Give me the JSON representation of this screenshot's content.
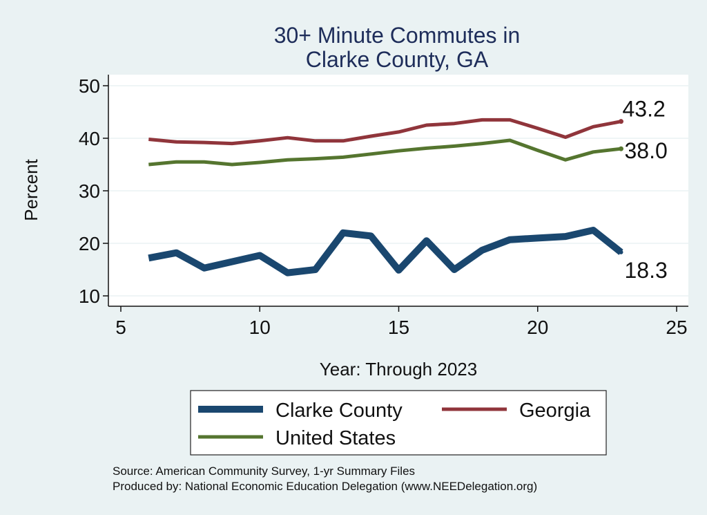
{
  "chart_data": {
    "type": "line",
    "title_lines": [
      "30+ Minute Commutes in",
      "Clarke County, GA"
    ],
    "xlabel": "Year: Through 2023",
    "ylabel": "Percent",
    "xlim": [
      5,
      25
    ],
    "ylim": [
      8,
      52
    ],
    "x_ticks": [
      5,
      10,
      15,
      20,
      25
    ],
    "y_ticks": [
      10,
      20,
      30,
      40,
      50
    ],
    "grid": "horizontal",
    "legend_position": "bottom",
    "series": [
      {
        "name": "Clarke County",
        "color": "#1a476f",
        "end_label": "18.3",
        "x": [
          6,
          7,
          8,
          9,
          10,
          11,
          12,
          13,
          14,
          15,
          16,
          17,
          18,
          19,
          20,
          21,
          22,
          23
        ],
        "values": [
          17.2,
          18.2,
          15.3,
          16.5,
          17.7,
          14.4,
          15.0,
          22.0,
          21.4,
          14.9,
          20.5,
          15.0,
          18.7,
          20.7,
          21.0,
          21.3,
          22.5,
          18.3
        ]
      },
      {
        "name": "Georgia",
        "color": "#90353b",
        "end_label": "43.2",
        "x": [
          6,
          7,
          8,
          9,
          10,
          11,
          12,
          13,
          14,
          15,
          16,
          17,
          18,
          19,
          20,
          21,
          22,
          23
        ],
        "values": [
          39.8,
          39.3,
          39.2,
          39.0,
          39.5,
          40.1,
          39.5,
          39.5,
          40.4,
          41.2,
          42.5,
          42.8,
          43.5,
          43.5,
          41.9,
          40.2,
          42.2,
          43.2
        ]
      },
      {
        "name": "United States",
        "color": "#55752f",
        "end_label": "38.0",
        "x": [
          6,
          7,
          8,
          9,
          10,
          11,
          12,
          13,
          14,
          15,
          16,
          17,
          18,
          19,
          20,
          21,
          22,
          23
        ],
        "values": [
          35.0,
          35.5,
          35.5,
          35.0,
          35.4,
          35.9,
          36.1,
          36.4,
          37.0,
          37.6,
          38.1,
          38.5,
          39.0,
          39.6,
          37.7,
          35.9,
          37.4,
          38.0
        ]
      }
    ],
    "source_lines": [
      "Source: American Community Survey, 1-yr Summary Files",
      "Produced by: National Economic Education Delegation (www.NEEDelegation.org)"
    ]
  }
}
